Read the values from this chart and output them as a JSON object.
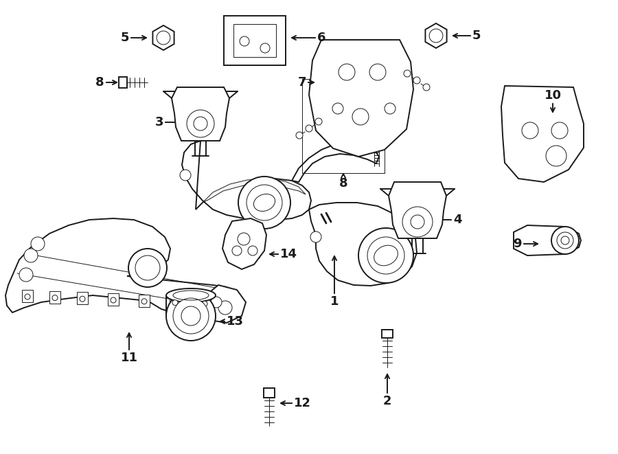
{
  "bg_color": "#ffffff",
  "line_color": "#1a1a1a",
  "fig_width": 9.0,
  "fig_height": 6.61,
  "dpi": 100,
  "lw": 1.4,
  "lw_thin": 0.7,
  "lw_thick": 2.0
}
